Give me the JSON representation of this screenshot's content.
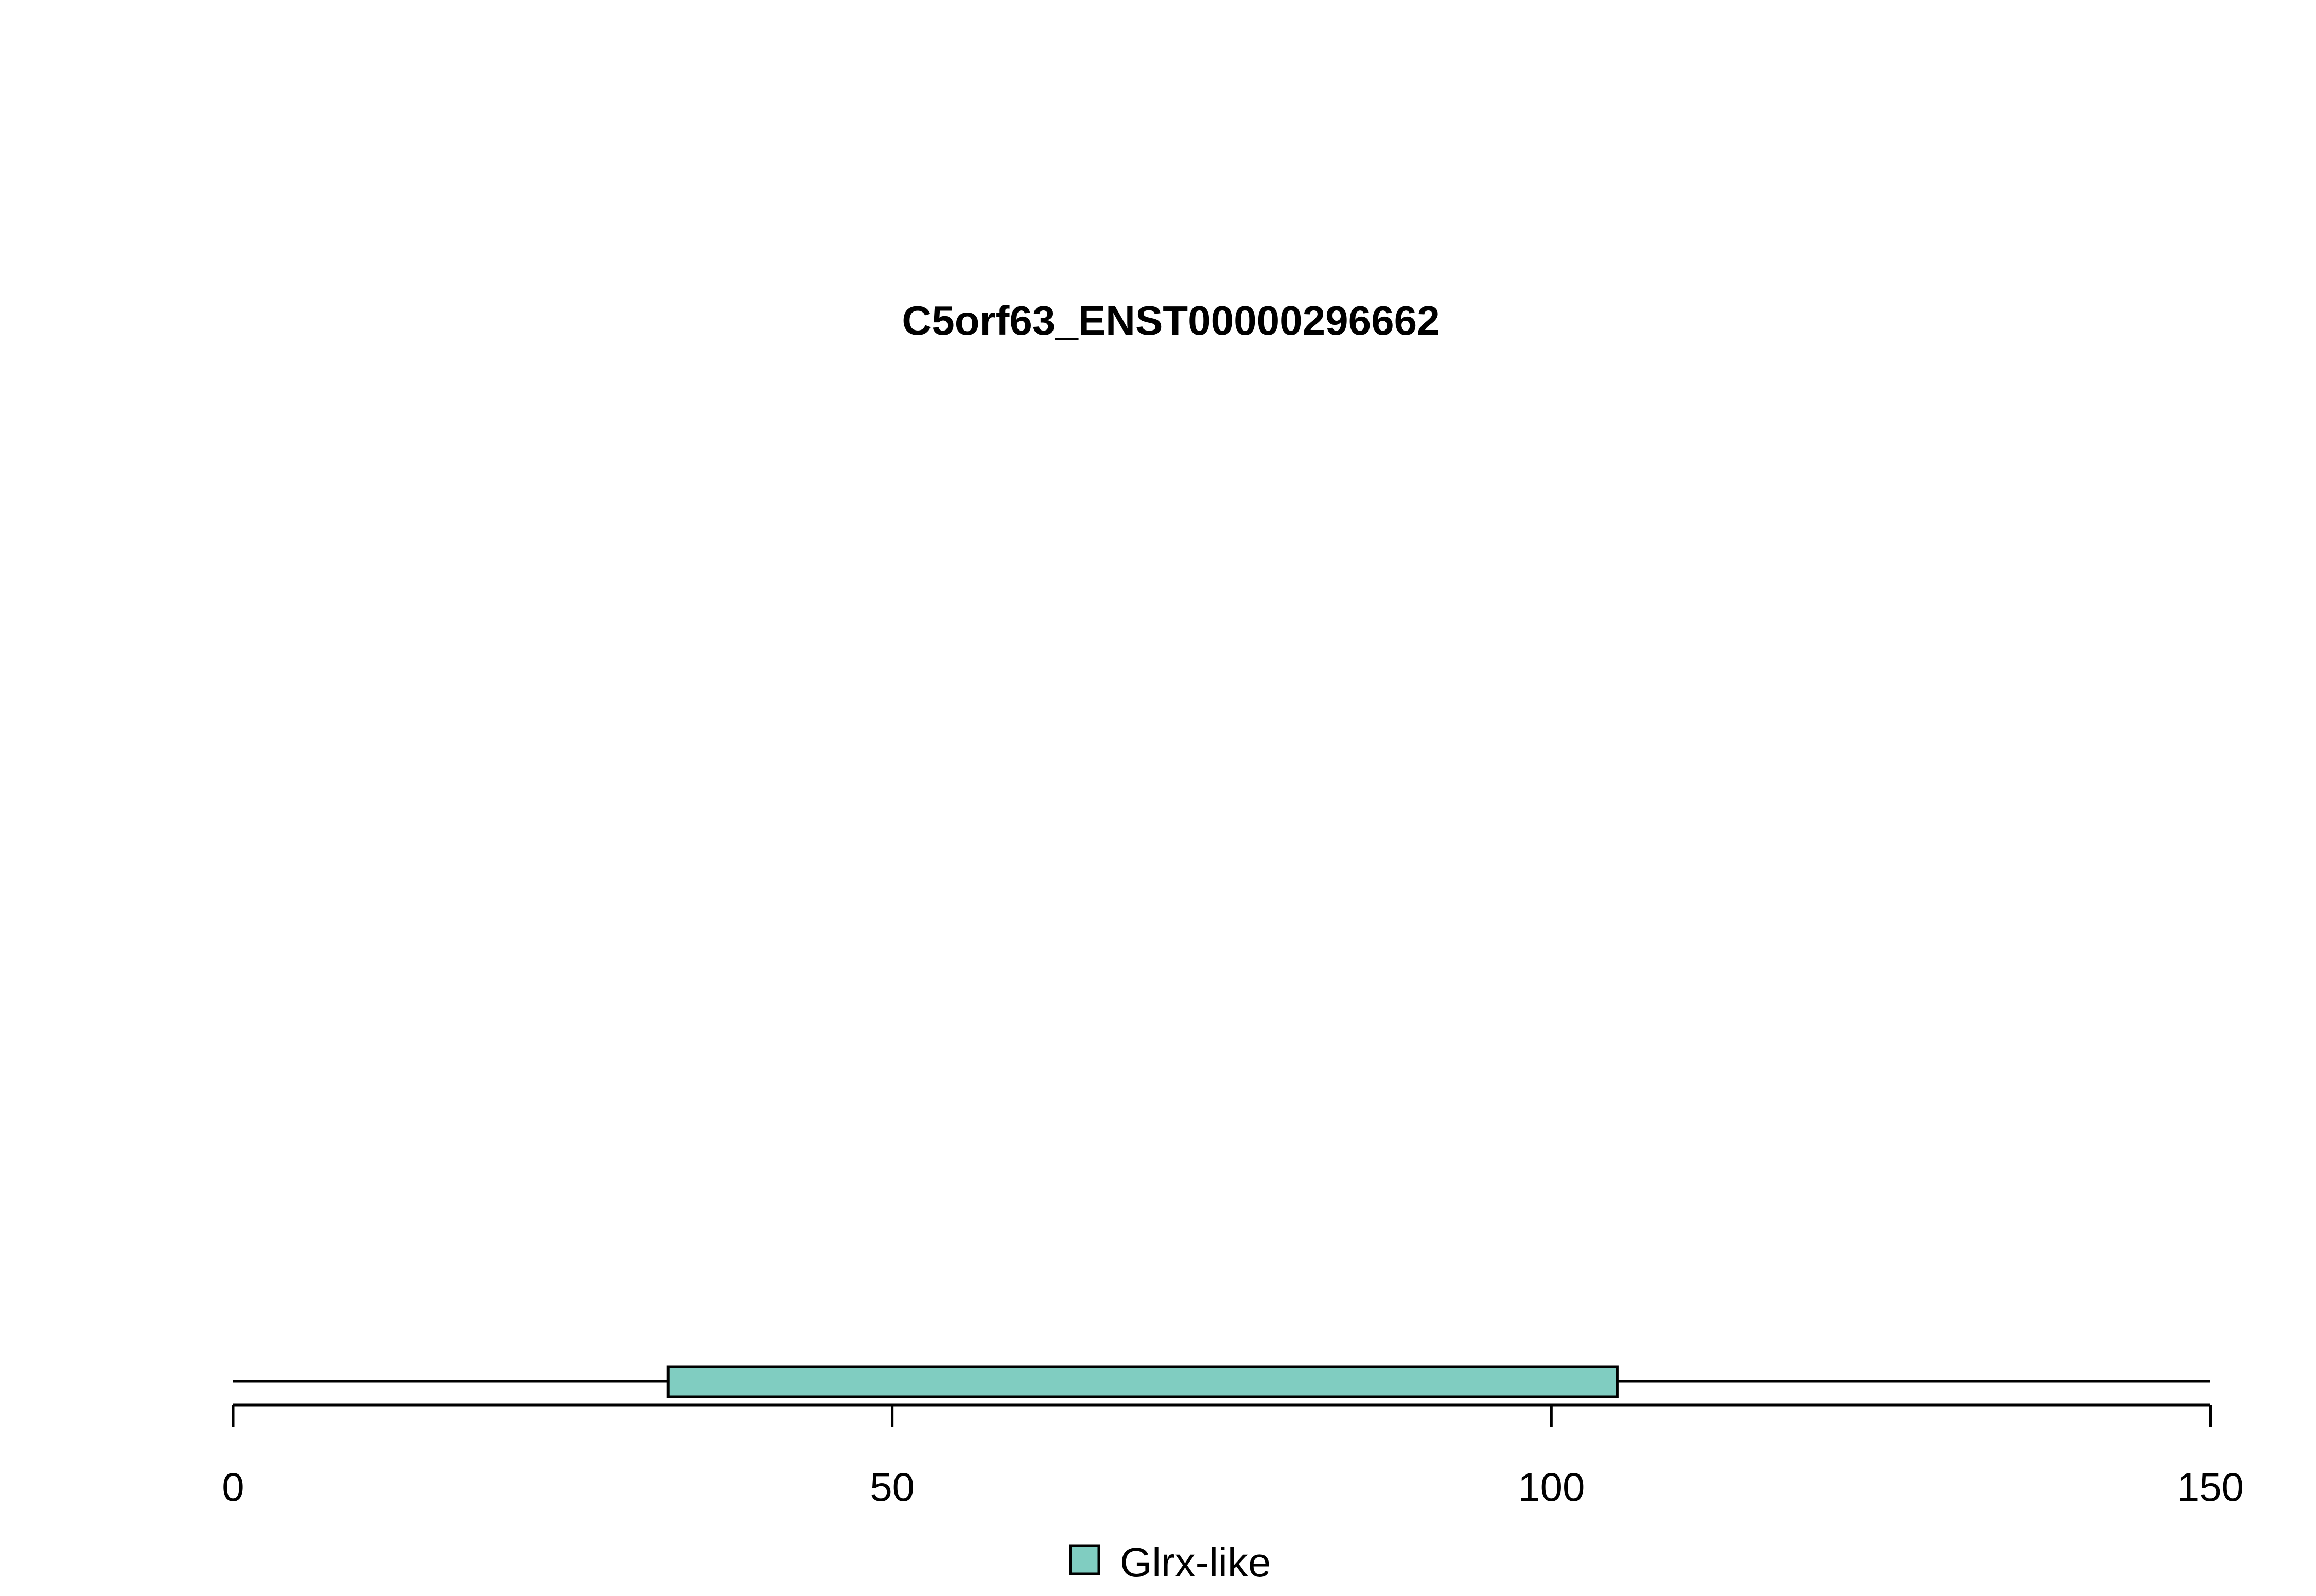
{
  "chart_data": {
    "type": "bar",
    "title": "C5orf63_ENST00000296662",
    "xlabel": "",
    "ylabel": "",
    "xlim": [
      0,
      150
    ],
    "grid": false,
    "protein_length": 150,
    "x_ticks": [
      0,
      50,
      100,
      150
    ],
    "x_tick_labels": [
      "0",
      "50",
      "100",
      "150"
    ],
    "domains": [
      {
        "name": "Glrx-like",
        "start": 33,
        "end": 105,
        "color": "#80cdc1"
      }
    ],
    "legend": {
      "placement": "bottom-center",
      "entries": [
        {
          "label": "Glrx-like",
          "color": "#80cdc1"
        }
      ]
    }
  }
}
